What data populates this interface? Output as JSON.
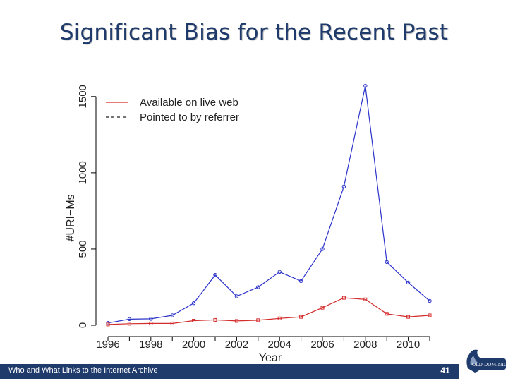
{
  "slide": {
    "title": "Significant Bias for the Recent Past",
    "footer_text": "Who and What Links to the Internet Archive",
    "page_number": "41",
    "logo_label": "OLD DOMINION"
  },
  "colors": {
    "title": "#1f3b6b",
    "footer_bg": "#1f3b6b",
    "series_live": "#d42a2a",
    "series_referrer": "#2b32c9"
  },
  "chart_data": {
    "type": "line",
    "title": "",
    "xlabel": "Year",
    "ylabel": "#URI−Ms",
    "x": [
      1996,
      1997,
      1998,
      1999,
      2000,
      2001,
      2002,
      2003,
      2004,
      2005,
      2006,
      2007,
      2008,
      2009,
      2010,
      2011
    ],
    "xticks": [
      "1996",
      "1998",
      "2000",
      "2002",
      "2004",
      "2006",
      "2008",
      "2010"
    ],
    "yticks": [
      "0",
      "500",
      "1000",
      "1500"
    ],
    "ylim": [
      0,
      1550
    ],
    "xlim": [
      1996,
      2011
    ],
    "legend_position": "top-left",
    "series": [
      {
        "name": "Available on live web",
        "line_style": "solid",
        "marker": "square",
        "values": [
          5,
          10,
          12,
          12,
          30,
          35,
          28,
          33,
          45,
          55,
          115,
          180,
          170,
          75,
          55,
          65
        ]
      },
      {
        "name": "Pointed to by referrer",
        "line_style": "dashed",
        "marker": "circle",
        "values": [
          15,
          40,
          42,
          65,
          145,
          330,
          190,
          250,
          350,
          290,
          500,
          910,
          1570,
          415,
          280,
          160
        ]
      }
    ]
  }
}
